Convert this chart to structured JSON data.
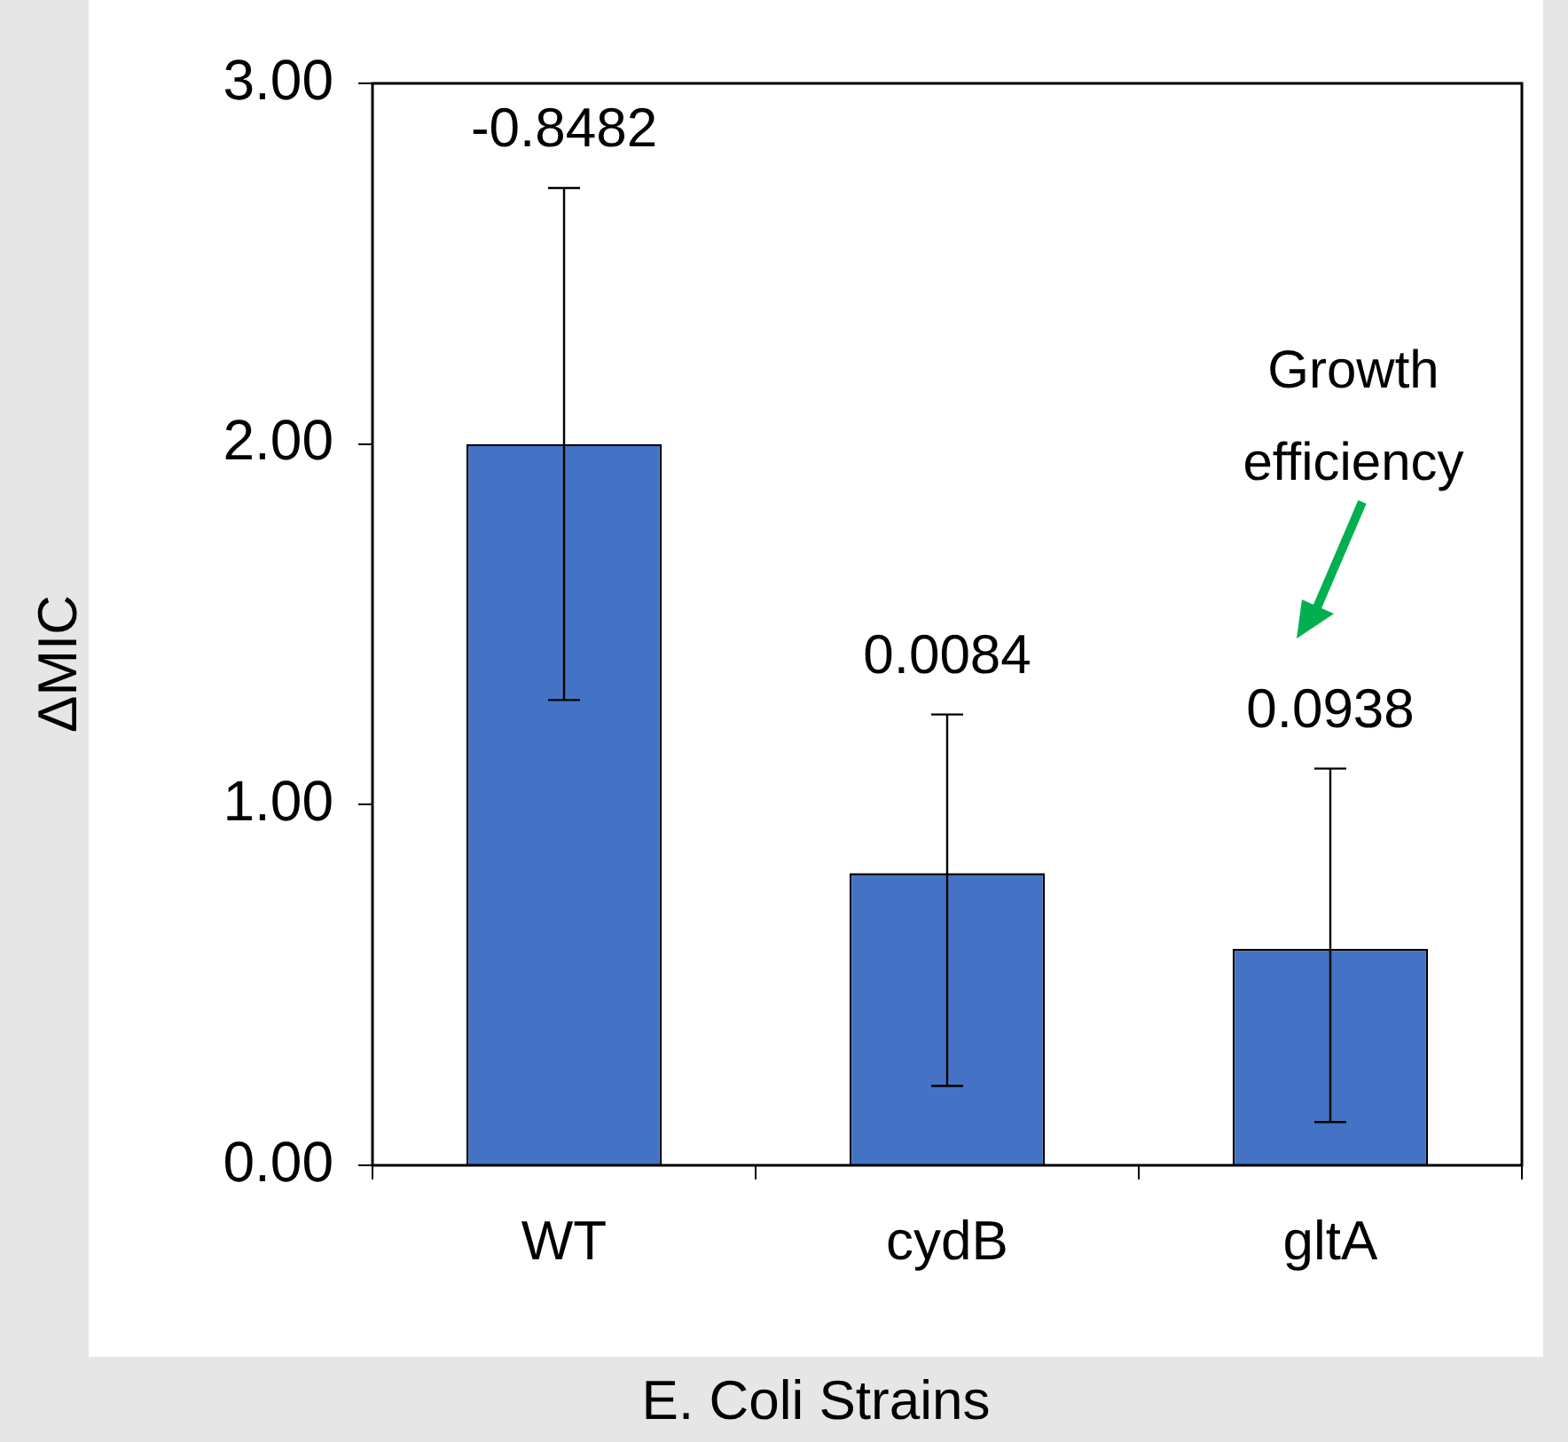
{
  "chart_data": {
    "type": "bar",
    "xlabel": "E. Coli Strains",
    "ylabel": "ΔMIC",
    "categories": [
      "WT",
      "cydB",
      "gltA"
    ],
    "values": [
      2.0,
      0.81,
      0.6
    ],
    "color": "#4472c4",
    "errors": [
      [
        1.29,
        2.71
      ],
      [
        0.22,
        1.25
      ],
      [
        0.12,
        1.1
      ]
    ],
    "ylim": [
      0,
      3
    ],
    "yticks": [
      {
        "value": 0,
        "label": "0.00"
      },
      {
        "value": 1,
        "label": "1.00"
      },
      {
        "value": 2,
        "label": "2.00"
      },
      {
        "value": 3,
        "label": "3.00"
      }
    ],
    "annotations": [
      "-0.8482",
      "0.0084",
      "0.0938",
      "Growth efficiency"
    ]
  }
}
